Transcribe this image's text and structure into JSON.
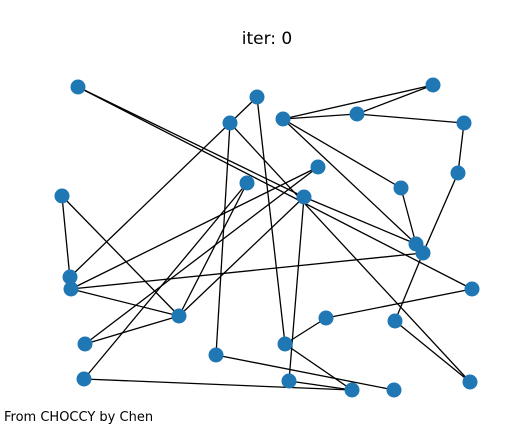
{
  "title": "iter: 0",
  "credit": "From CHOCCY by Chen",
  "style": {
    "node_color": "#1f77b4",
    "edge_color": "#000000"
  },
  "graph": {
    "nodes": [
      "n0",
      "n1",
      "n2",
      "n3",
      "n4",
      "n5",
      "n6",
      "n7",
      "n8",
      "n9",
      "n10",
      "n11",
      "n12",
      "n13",
      "n14",
      "n15",
      "n16",
      "n17",
      "n18",
      "n19",
      "n20",
      "n21",
      "n22",
      "n23",
      "n24",
      "n25",
      "n26",
      "n27",
      "n28"
    ],
    "edges": [
      [
        "n0",
        "n18"
      ],
      [
        "n0",
        "n10"
      ],
      [
        "n1",
        "n3"
      ],
      [
        "n1",
        "n4"
      ],
      [
        "n3",
        "n5"
      ],
      [
        "n3",
        "n4"
      ],
      [
        "n4",
        "n8"
      ],
      [
        "n4",
        "n13"
      ],
      [
        "n5",
        "n9"
      ],
      [
        "n6",
        "n22"
      ],
      [
        "n6",
        "n26"
      ],
      [
        "n2",
        "n23"
      ],
      [
        "n2",
        "n15"
      ],
      [
        "n7",
        "n16"
      ],
      [
        "n7",
        "n21"
      ],
      [
        "n8",
        "n13"
      ],
      [
        "n9",
        "n14"
      ],
      [
        "n10",
        "n13"
      ],
      [
        "n10",
        "n25"
      ],
      [
        "n10",
        "n17"
      ],
      [
        "n11",
        "n17"
      ],
      [
        "n11",
        "n24"
      ],
      [
        "n12",
        "n16"
      ],
      [
        "n12",
        "n17"
      ],
      [
        "n14",
        "n16"
      ],
      [
        "n14",
        "n20"
      ],
      [
        "n16",
        "n17"
      ],
      [
        "n17",
        "n21"
      ],
      [
        "n18",
        "n19"
      ],
      [
        "n19",
        "n23"
      ],
      [
        "n20",
        "n26"
      ],
      [
        "n22",
        "n28"
      ],
      [
        "n23",
        "n27"
      ],
      [
        "n24",
        "n27"
      ],
      [
        "n25",
        "n27"
      ]
    ]
  }
}
